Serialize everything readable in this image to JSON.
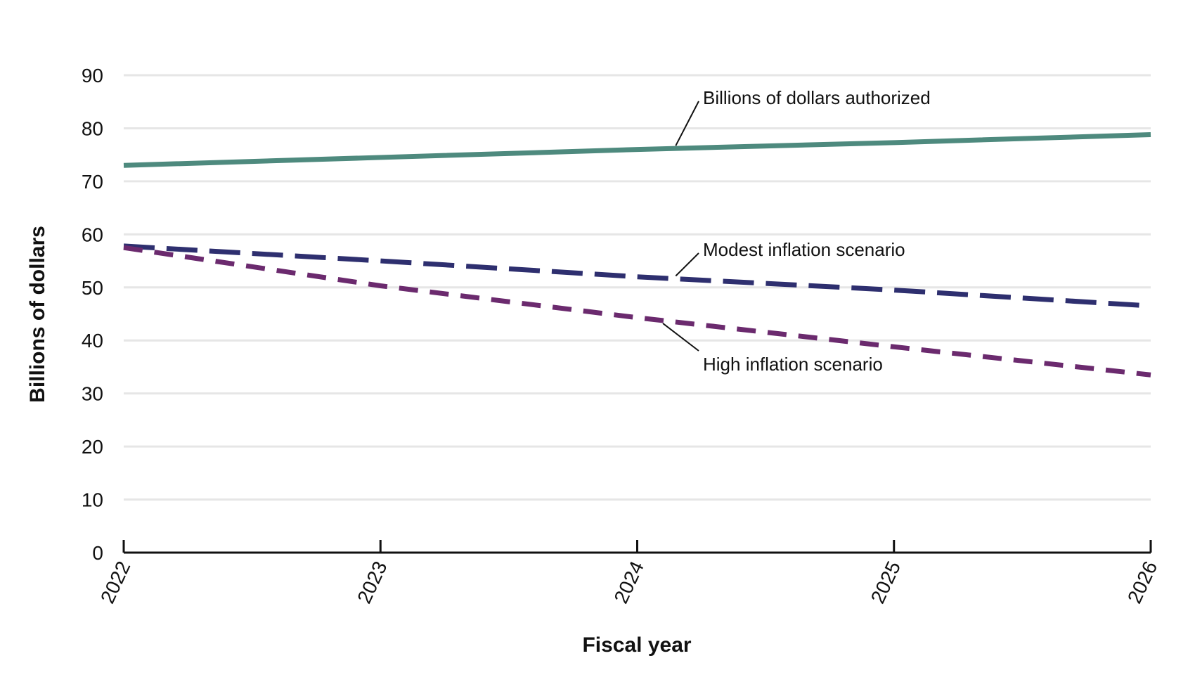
{
  "chart_data": {
    "type": "line",
    "xlabel": "Fiscal year",
    "ylabel": "Billions of dollars",
    "x": [
      "2022",
      "2023",
      "2024",
      "2025",
      "2026"
    ],
    "ylim": [
      0,
      90
    ],
    "yticks": [
      0,
      10,
      20,
      30,
      40,
      50,
      60,
      70,
      80,
      90
    ],
    "grid": true,
    "series": [
      {
        "name": "Billions of dollars authorized",
        "values": [
          73.0,
          74.5,
          76.0,
          77.3,
          78.8
        ],
        "color": "#4e8a7e",
        "style": "solid"
      },
      {
        "name": "Modest inflation scenario",
        "values": [
          57.8,
          55.0,
          52.0,
          49.5,
          46.5
        ],
        "color": "#2e2f6f",
        "style": "long-dash"
      },
      {
        "name": "High inflation scenario",
        "values": [
          57.5,
          50.3,
          44.3,
          38.8,
          33.5
        ],
        "color": "#6b2a6e",
        "style": "short-dash"
      }
    ]
  }
}
